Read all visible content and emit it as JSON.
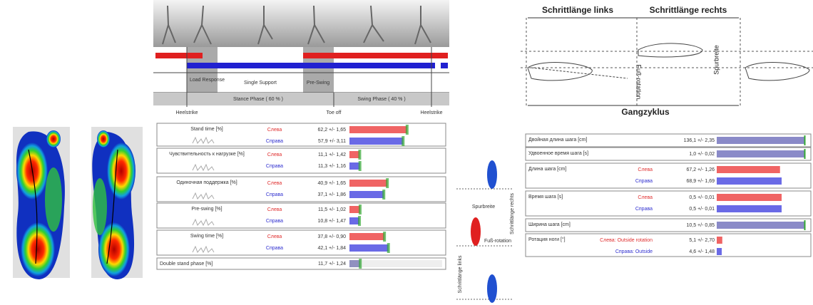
{
  "gait_phases": {
    "phases": [
      "Load Response",
      "Single Support",
      "Pre-Swing"
    ],
    "stance": "Stance Phase ( 60 % )",
    "swing": "Swing Phase ( 40 % )",
    "events": [
      "Heelstrike",
      "Toe off",
      "Heelstrike"
    ]
  },
  "stride_diagram": {
    "left": "Schrittlänge links",
    "right": "Schrittlänge rechts",
    "track_width": "Spurbreite",
    "rotation": "Fuß-rotation",
    "cycle": "Gangzyklus"
  },
  "foot_diagram": {
    "track_width": "Spurbreite",
    "right": "Schrittlänge rechts",
    "rotation": "Fuß-rotation",
    "left": "Schrittlänge links"
  },
  "table1": {
    "rows": [
      {
        "label": "Stand time [%]",
        "entries": [
          {
            "side": "Слева",
            "value": "62,2 +/- 1,65"
          },
          {
            "side": "Справа",
            "value": "57,9 +/- 3,11"
          }
        ]
      },
      {
        "label": "Чувствительность к нагрузке [%]",
        "entries": [
          {
            "side": "Слева",
            "value": "11,1 +/- 1,42"
          },
          {
            "side": "Справа",
            "value": "11,3 +/- 1,16"
          }
        ]
      },
      {
        "label": "Одиночная поддержка [%]",
        "entries": [
          {
            "side": "Слева",
            "value": "40,9 +/- 1,65"
          },
          {
            "side": "Справа",
            "value": "37,1 +/- 1,86"
          }
        ]
      },
      {
        "label": "Pre-swing [%]",
        "entries": [
          {
            "side": "Слева",
            "value": "11,5 +/- 1,02"
          },
          {
            "side": "Справа",
            "value": "10,8 +/- 1,47"
          }
        ]
      },
      {
        "label": "Swing time [%]",
        "entries": [
          {
            "side": "Слева",
            "value": "37,8 +/- 0,90"
          },
          {
            "side": "Справа",
            "value": "42,1 +/- 1,84"
          }
        ]
      },
      {
        "label": "Double stand phase [%]",
        "entries": [
          {
            "value": "11,7 +/- 1,24"
          }
        ]
      }
    ]
  },
  "table2": {
    "rows": [
      {
        "label": "Двойная длина шага [cm]",
        "entries": [
          {
            "value": "136,1 +/- 2,35"
          }
        ]
      },
      {
        "label": "Удвоенное время шага [s]",
        "entries": [
          {
            "value": "1,0 +/- 0,02"
          }
        ]
      },
      {
        "label": "Длина шага [cm]",
        "entries": [
          {
            "side": "Слева",
            "value": "67,2 +/- 1,26"
          },
          {
            "side": "Справа",
            "value": "68,9 +/- 1,69"
          }
        ]
      },
      {
        "label": "Время шага [s]",
        "entries": [
          {
            "side": "Слева",
            "value": "0,5 +/- 0,01"
          },
          {
            "side": "Справа",
            "value": "0,5 +/- 0,01"
          }
        ]
      },
      {
        "label": "Ширина шага [cm]",
        "entries": [
          {
            "value": "10,5 +/- 0,85"
          }
        ]
      },
      {
        "label": "Ротация ноги [°]",
        "entries": [
          {
            "side": "Слева: Outside rotation",
            "value": "5,1 +/- 2,70"
          },
          {
            "side": "Справа: Outside",
            "value": "4,6 +/- 1,48"
          }
        ]
      }
    ]
  }
}
